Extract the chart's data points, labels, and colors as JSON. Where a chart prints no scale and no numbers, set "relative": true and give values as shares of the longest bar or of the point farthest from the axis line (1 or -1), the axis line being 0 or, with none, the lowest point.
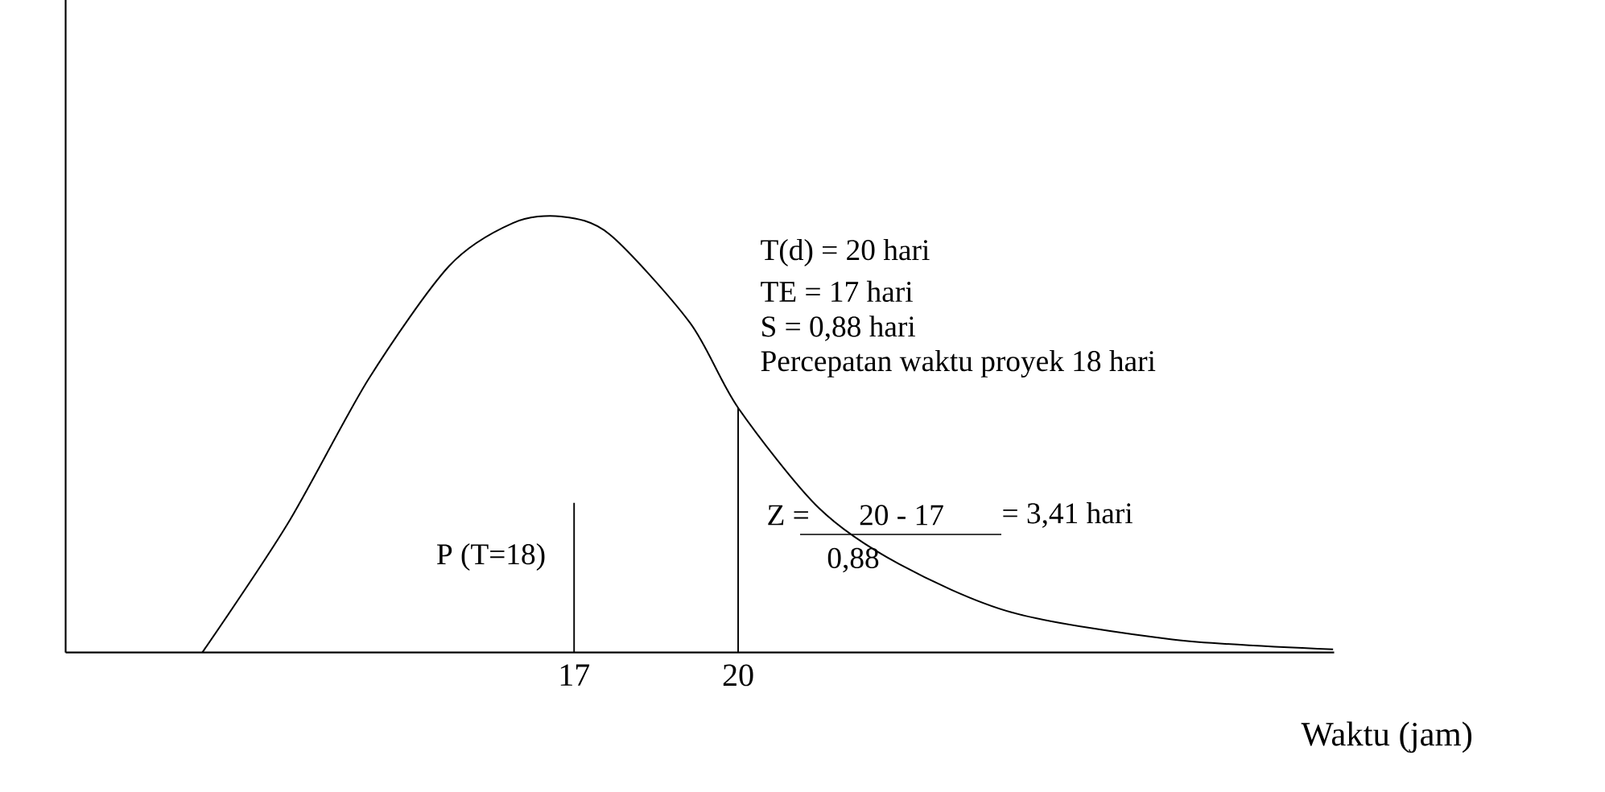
{
  "chart_data": {
    "type": "line",
    "relative": true,
    "xlabel": "Waktu (jam)",
    "xlim": [
      7.7,
      30.9
    ],
    "xticks": [
      17,
      20
    ],
    "series": [
      {
        "color": "#000000",
        "x": [
          10.2,
          11.76,
          13.24,
          14.71,
          15.88,
          16.76,
          17.65,
          19.12,
          20,
          21.47,
          22.94,
          25,
          27.94,
          30.88
        ],
        "values": [
          0,
          0.295,
          0.627,
          0.886,
          0.985,
          1,
          0.959,
          0.756,
          0.561,
          0.332,
          0.203,
          0.092,
          0.03,
          0.007
        ]
      },
      {
        "type": "line",
        "color": "#000000",
        "x": [
          17,
          17
        ],
        "values": [
          0,
          0.343
        ]
      },
      {
        "type": "line",
        "color": "#000000",
        "x": [
          20,
          20
        ],
        "values": [
          0,
          0.561
        ]
      }
    ],
    "annotations": [
      "T(d) = 20 hari",
      "TE  = 17 hari",
      "S     = 0,88 hari",
      "Percepatan waktu proyek 18 hari",
      "Z =",
      "20 - 17",
      "0,88",
      "= 3,41 hari",
      "P (T=18)"
    ]
  }
}
